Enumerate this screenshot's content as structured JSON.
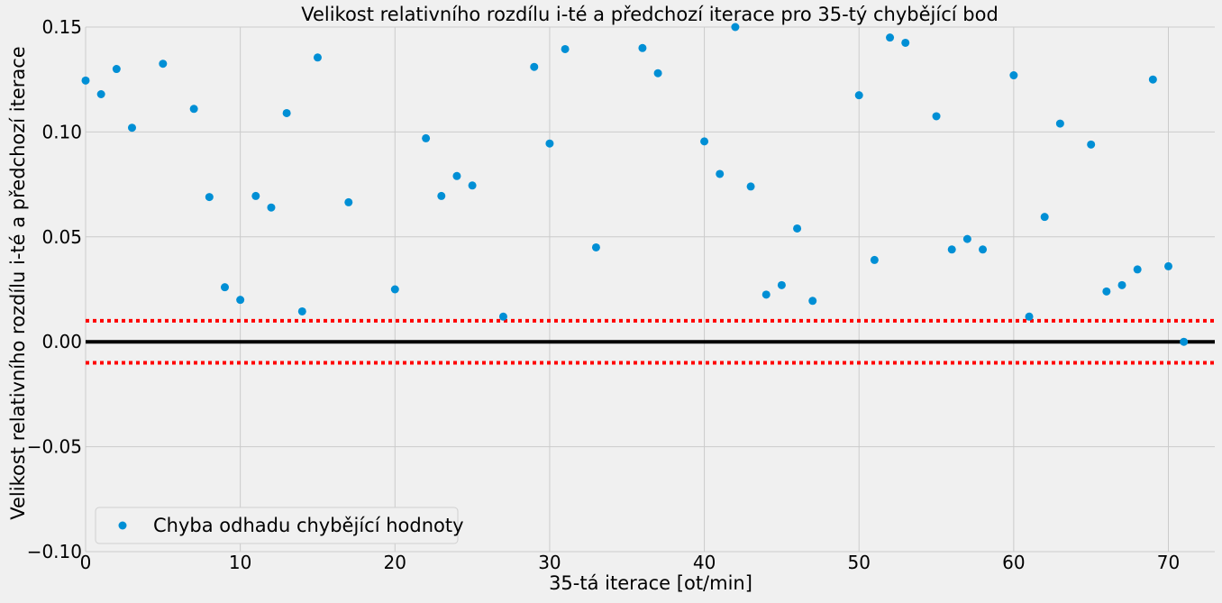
{
  "chart_data": {
    "type": "scatter",
    "title": "Velikost relativního rozdílu i-té a předchozí iterace pro 35-tý chybějící bod",
    "xlabel": "35-tá iterace [ot/min]",
    "ylabel": "Velikost relativního rozdílu i-té a předchozí iterace",
    "xlim": [
      0,
      73
    ],
    "ylim": [
      -0.1,
      0.15
    ],
    "xticks": [
      "0",
      "10",
      "20",
      "30",
      "40",
      "50",
      "60",
      "70"
    ],
    "xtick_values": [
      0,
      10,
      20,
      30,
      40,
      50,
      60,
      70
    ],
    "yticks": [
      "−0.10",
      "−0.05",
      "0.00",
      "0.05",
      "0.10",
      "0.15"
    ],
    "ytick_values": [
      -0.1,
      -0.05,
      0.0,
      0.05,
      0.1,
      0.15
    ],
    "grid": true,
    "legend_position": "lower-left",
    "series": [
      {
        "name": "Chyba odhadu chybějící hodnoty",
        "color": "#008fd5",
        "points": [
          [
            0,
            0.1245
          ],
          [
            1,
            0.118
          ],
          [
            2,
            0.13
          ],
          [
            3,
            0.102
          ],
          [
            5,
            0.1325
          ],
          [
            7,
            0.111
          ],
          [
            8,
            0.069
          ],
          [
            9,
            0.026
          ],
          [
            10,
            0.02
          ],
          [
            11,
            0.0695
          ],
          [
            12,
            0.064
          ],
          [
            13,
            0.109
          ],
          [
            14,
            0.0145
          ],
          [
            15,
            0.1355
          ],
          [
            17,
            0.0665
          ],
          [
            20,
            0.025
          ],
          [
            22,
            0.097
          ],
          [
            23,
            0.0695
          ],
          [
            24,
            0.079
          ],
          [
            25,
            0.0745
          ],
          [
            27,
            0.012
          ],
          [
            29,
            0.131
          ],
          [
            30,
            0.0945
          ],
          [
            31,
            0.1395
          ],
          [
            33,
            0.045
          ],
          [
            36,
            0.14
          ],
          [
            37,
            0.128
          ],
          [
            40,
            0.0955
          ],
          [
            41,
            0.08
          ],
          [
            42,
            0.15
          ],
          [
            43,
            0.074
          ],
          [
            44,
            0.0225
          ],
          [
            45,
            0.027
          ],
          [
            46,
            0.054
          ],
          [
            47,
            0.0195
          ],
          [
            50,
            0.1175
          ],
          [
            51,
            0.039
          ],
          [
            52,
            0.145
          ],
          [
            53,
            0.1425
          ],
          [
            55,
            0.1075
          ],
          [
            56,
            0.044
          ],
          [
            57,
            0.049
          ],
          [
            58,
            0.044
          ],
          [
            60,
            0.127
          ],
          [
            61,
            0.012
          ],
          [
            62,
            0.0595
          ],
          [
            63,
            0.104
          ],
          [
            65,
            0.094
          ],
          [
            66,
            0.024
          ],
          [
            67,
            0.027
          ],
          [
            68,
            0.0345
          ],
          [
            69,
            0.125
          ],
          [
            70,
            0.036
          ],
          [
            71,
            0.0
          ]
        ]
      }
    ],
    "reference_lines": [
      {
        "y": 0.0,
        "color": "#000000",
        "style": "solid"
      },
      {
        "y": 0.01,
        "color": "#ff0000",
        "style": "dotted"
      },
      {
        "y": -0.01,
        "color": "#ff0000",
        "style": "dotted"
      }
    ]
  }
}
